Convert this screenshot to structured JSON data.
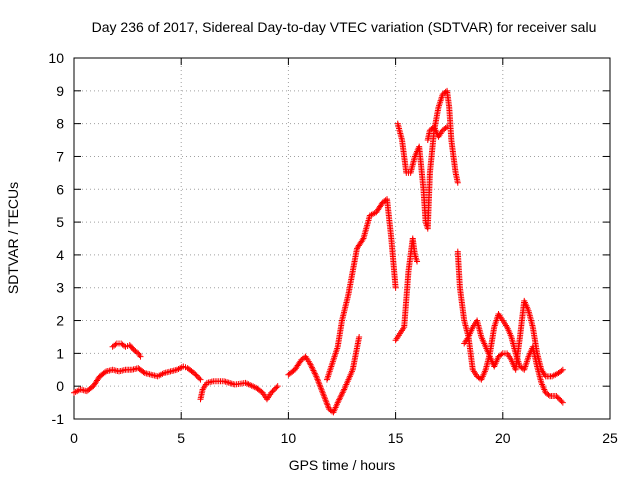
{
  "chart_data": {
    "type": "scatter",
    "title": "Day 236 of 2017, Sidereal Day-to-day VTEC variation (SDTVAR) for receiver salu",
    "xlabel": "GPS time / hours",
    "ylabel": "SDTVAR / TECUs",
    "xlim": [
      0,
      25
    ],
    "ylim": [
      -1,
      10
    ],
    "xticks": [
      0,
      5,
      10,
      15,
      20,
      25
    ],
    "yticks": [
      -1,
      0,
      1,
      2,
      3,
      4,
      5,
      6,
      7,
      8,
      9,
      10
    ],
    "grid": true,
    "marker": "+",
    "series": [
      {
        "name": "SDTVAR",
        "color": "#ff0000",
        "segments": [
          [
            [
              0.0,
              -0.2
            ],
            [
              0.3,
              -0.1
            ],
            [
              0.6,
              -0.15
            ],
            [
              0.9,
              0.0
            ],
            [
              1.2,
              0.3
            ],
            [
              1.5,
              0.45
            ],
            [
              1.8,
              0.5
            ],
            [
              2.1,
              0.45
            ],
            [
              2.4,
              0.5
            ],
            [
              2.7,
              0.5
            ],
            [
              3.0,
              0.55
            ],
            [
              3.3,
              0.4
            ],
            [
              3.6,
              0.35
            ],
            [
              3.9,
              0.3
            ],
            [
              4.2,
              0.4
            ],
            [
              4.5,
              0.45
            ],
            [
              4.8,
              0.5
            ],
            [
              5.1,
              0.6
            ],
            [
              5.3,
              0.55
            ],
            [
              5.6,
              0.4
            ],
            [
              5.9,
              0.2
            ]
          ],
          [
            [
              1.8,
              1.2
            ],
            [
              2.0,
              1.3
            ],
            [
              2.2,
              1.3
            ],
            [
              2.4,
              1.2
            ],
            [
              2.6,
              1.25
            ],
            [
              2.8,
              1.1
            ],
            [
              3.0,
              1.0
            ],
            [
              3.1,
              0.9
            ]
          ],
          [
            [
              5.9,
              -0.4
            ],
            [
              6.0,
              -0.1
            ],
            [
              6.2,
              0.1
            ],
            [
              6.5,
              0.15
            ],
            [
              7.0,
              0.15
            ],
            [
              7.5,
              0.05
            ],
            [
              8.0,
              0.1
            ],
            [
              8.5,
              -0.05
            ],
            [
              8.8,
              -0.2
            ],
            [
              9.0,
              -0.4
            ],
            [
              9.2,
              -0.2
            ],
            [
              9.5,
              0.0
            ]
          ],
          [
            [
              10.0,
              0.35
            ],
            [
              10.3,
              0.5
            ],
            [
              10.6,
              0.8
            ],
            [
              10.8,
              0.9
            ],
            [
              11.0,
              0.7
            ],
            [
              11.3,
              0.3
            ],
            [
              11.6,
              -0.2
            ],
            [
              11.9,
              -0.7
            ],
            [
              12.1,
              -0.8
            ],
            [
              12.3,
              -0.5
            ],
            [
              12.6,
              -0.1
            ],
            [
              12.8,
              0.2
            ],
            [
              13.0,
              0.5
            ],
            [
              13.3,
              1.5
            ]
          ],
          [
            [
              11.8,
              0.2
            ],
            [
              12.0,
              0.6
            ],
            [
              12.3,
              1.2
            ],
            [
              12.5,
              2.0
            ],
            [
              12.8,
              2.8
            ],
            [
              13.0,
              3.5
            ],
            [
              13.2,
              4.2
            ],
            [
              13.5,
              4.5
            ],
            [
              13.8,
              5.2
            ],
            [
              14.1,
              5.3
            ],
            [
              14.4,
              5.6
            ],
            [
              14.6,
              5.7
            ],
            [
              14.8,
              4.5
            ],
            [
              15.0,
              3.0
            ]
          ],
          [
            [
              15.0,
              1.4
            ],
            [
              15.2,
              1.6
            ],
            [
              15.4,
              1.8
            ],
            [
              15.6,
              3.5
            ],
            [
              15.8,
              4.5
            ],
            [
              15.9,
              4.0
            ],
            [
              16.0,
              3.8
            ]
          ],
          [
            [
              15.1,
              8.0
            ],
            [
              15.3,
              7.5
            ],
            [
              15.5,
              6.5
            ],
            [
              15.7,
              6.5
            ],
            [
              15.9,
              7.0
            ],
            [
              16.1,
              7.3
            ],
            [
              16.3,
              6.0
            ],
            [
              16.4,
              5.0
            ],
            [
              16.5,
              4.8
            ],
            [
              16.6,
              6.5
            ],
            [
              16.8,
              7.8
            ],
            [
              17.0,
              8.5
            ],
            [
              17.2,
              8.9
            ],
            [
              17.4,
              9.0
            ],
            [
              17.5,
              8.5
            ],
            [
              17.6,
              7.5
            ],
            [
              17.8,
              6.5
            ],
            [
              17.9,
              6.2
            ]
          ],
          [
            [
              16.5,
              7.5
            ],
            [
              16.6,
              7.8
            ],
            [
              16.8,
              7.9
            ],
            [
              17.0,
              7.6
            ],
            [
              17.2,
              7.8
            ],
            [
              17.4,
              7.9
            ]
          ],
          [
            [
              17.9,
              4.1
            ],
            [
              18.0,
              3.0
            ],
            [
              18.2,
              2.0
            ],
            [
              18.4,
              1.5
            ],
            [
              18.6,
              0.5
            ],
            [
              18.8,
              0.3
            ],
            [
              19.0,
              0.2
            ],
            [
              19.2,
              0.5
            ],
            [
              19.4,
              1.0
            ],
            [
              19.6,
              1.8
            ],
            [
              19.8,
              2.2
            ],
            [
              20.0,
              2.0
            ],
            [
              20.2,
              1.8
            ],
            [
              20.4,
              1.5
            ],
            [
              20.6,
              1.0
            ],
            [
              20.8,
              0.6
            ],
            [
              21.0,
              0.5
            ],
            [
              21.2,
              0.9
            ],
            [
              21.4,
              1.2
            ],
            [
              21.6,
              0.6
            ],
            [
              21.8,
              0.1
            ],
            [
              22.0,
              -0.2
            ],
            [
              22.2,
              -0.3
            ],
            [
              22.5,
              -0.3
            ],
            [
              22.8,
              -0.5
            ]
          ],
          [
            [
              18.2,
              1.3
            ],
            [
              18.4,
              1.5
            ],
            [
              18.6,
              1.8
            ],
            [
              18.8,
              2.0
            ],
            [
              19.0,
              1.5
            ],
            [
              19.2,
              1.2
            ],
            [
              19.4,
              0.9
            ],
            [
              19.6,
              0.6
            ],
            [
              19.8,
              0.9
            ],
            [
              20.0,
              1.0
            ],
            [
              20.2,
              1.0
            ],
            [
              20.4,
              0.8
            ],
            [
              20.6,
              0.5
            ],
            [
              20.8,
              1.5
            ],
            [
              21.0,
              2.6
            ],
            [
              21.2,
              2.3
            ],
            [
              21.4,
              1.8
            ],
            [
              21.6,
              1.0
            ],
            [
              21.8,
              0.5
            ],
            [
              22.0,
              0.3
            ],
            [
              22.3,
              0.3
            ],
            [
              22.6,
              0.4
            ],
            [
              22.8,
              0.5
            ]
          ]
        ]
      }
    ]
  }
}
